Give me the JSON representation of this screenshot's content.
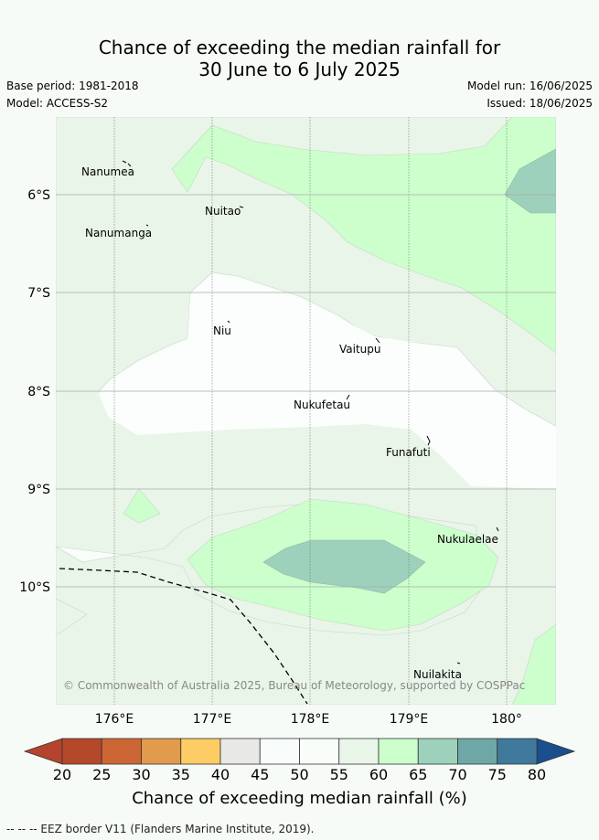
{
  "header": {
    "title_line1": "Chance of exceeding the median rainfall for",
    "title_line2": "30 June to 6 July 2025",
    "base_period": "Base period: 1981-2018",
    "model": "Model: ACCESS-S2",
    "model_run": "Model run: 16/06/2025",
    "issued": "Issued: 18/06/2025"
  },
  "map": {
    "lon_ticks": [
      "176°E",
      "177°E",
      "178°E",
      "179°E",
      "180°"
    ],
    "lat_ticks": [
      "6°S",
      "7°S",
      "8°S",
      "9°S",
      "10°S"
    ],
    "places": [
      "Nanumea",
      "Nuitao",
      "Nanumanga",
      "Niu",
      "Vaitupu",
      "Nukufetau",
      "Funafuti",
      "Nukulaelae",
      "Nuilakita"
    ],
    "copyright": "© Commonwealth of Australia 2025, Bureau of Meteorology, supported by COSPPac"
  },
  "colorbar": {
    "labels": [
      "20",
      "25",
      "30",
      "35",
      "40",
      "45",
      "50",
      "55",
      "60",
      "65",
      "70",
      "75",
      "80"
    ],
    "colors": [
      "#b5482a",
      "#cc6735",
      "#e29a4c",
      "#fdcc65",
      "#e8e8e6",
      "#f8fcfa",
      "#f8fdfa",
      "#e9f5e9",
      "#ccffcc",
      "#9dd1bb",
      "#6fa7a6",
      "#3f7a9c"
    ],
    "low_color": "#b5432d",
    "high_color": "#1b4e8c",
    "title": "Chance of exceeding median rainfall (%)"
  },
  "footer": {
    "eez_note": "-- -- -- EEZ border V11 (Flanders Marine Institute, 2019)."
  }
}
